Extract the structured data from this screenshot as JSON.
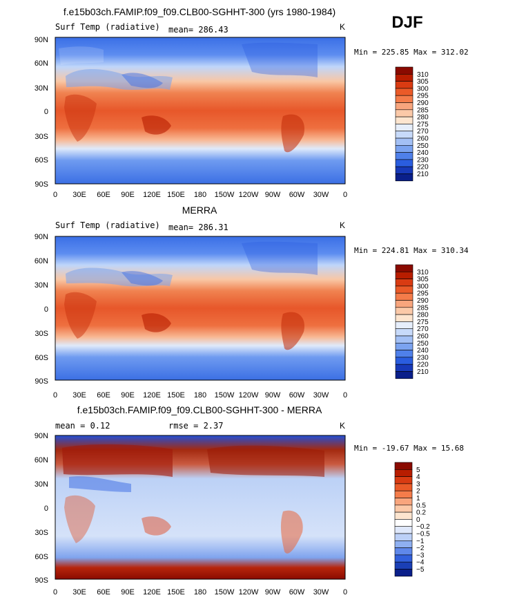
{
  "season": "DJF",
  "panels": [
    {
      "title": "f.e15b03ch.FAMIP.f09_f09.CLB00-SGHHT-300 (yrs 1980-1984)",
      "left_label": "Surf Temp (radiative)",
      "mean_text": "mean= 286.43",
      "unit": "K",
      "minmax": "Min = 225.85 Max = 312.02"
    },
    {
      "title": "MERRA",
      "left_label": "Surf Temp (radiative)",
      "mean_text": "mean= 286.31",
      "unit": "K",
      "minmax": "Min = 224.81 Max = 310.34"
    },
    {
      "title": "f.e15b03ch.FAMIP.f09_f09.CLB00-SGHHT-300 - MERRA",
      "left_label": "mean =    0.12",
      "mean_text": "rmse =    2.37",
      "unit": "K",
      "minmax": "Min = -19.67 Max =  15.68"
    }
  ],
  "chart_data": [
    {
      "type": "heatmap",
      "title": "f.e15b03ch.FAMIP.f09_f09.CLB00-SGHHT-300 (yrs 1980-1984)",
      "variable": "Surf Temp (radiative)",
      "units": "K",
      "mean": 286.43,
      "min": 225.85,
      "max": 312.02,
      "x_ticks": [
        "0",
        "30E",
        "60E",
        "90E",
        "120E",
        "150E",
        "180",
        "150W",
        "120W",
        "90W",
        "60W",
        "30W",
        "0"
      ],
      "y_ticks": [
        "90N",
        "60N",
        "30N",
        "0",
        "30S",
        "60S",
        "90S"
      ],
      "colorbar_levels": [
        "310",
        "305",
        "300",
        "295",
        "290",
        "285",
        "280",
        "275",
        "270",
        "260",
        "250",
        "240",
        "230",
        "220",
        "210"
      ],
      "colorbar_colors": [
        "#8a0a00",
        "#b81d00",
        "#d93b12",
        "#ea5a28",
        "#f47c4a",
        "#f8a57d",
        "#fbc9a8",
        "#fde5cf",
        "#e6eefb",
        "#c7dafa",
        "#a3c0f5",
        "#7ba3f0",
        "#4f80ea",
        "#2a5ddf",
        "#1739b8",
        "#0a1f8a"
      ]
    },
    {
      "type": "heatmap",
      "title": "MERRA",
      "variable": "Surf Temp (radiative)",
      "units": "K",
      "mean": 286.31,
      "min": 224.81,
      "max": 310.34,
      "x_ticks": [
        "0",
        "30E",
        "60E",
        "90E",
        "120E",
        "150E",
        "180",
        "150W",
        "120W",
        "90W",
        "60W",
        "30W",
        "0"
      ],
      "y_ticks": [
        "90N",
        "60N",
        "30N",
        "0",
        "30S",
        "60S",
        "90S"
      ],
      "colorbar_levels": [
        "310",
        "305",
        "300",
        "295",
        "290",
        "285",
        "280",
        "275",
        "270",
        "260",
        "250",
        "240",
        "230",
        "220",
        "210"
      ],
      "colorbar_colors": [
        "#8a0a00",
        "#b81d00",
        "#d93b12",
        "#ea5a28",
        "#f47c4a",
        "#f8a57d",
        "#fbc9a8",
        "#fde5cf",
        "#e6eefb",
        "#c7dafa",
        "#a3c0f5",
        "#7ba3f0",
        "#4f80ea",
        "#2a5ddf",
        "#1739b8",
        "#0a1f8a"
      ]
    },
    {
      "type": "heatmap",
      "title": "f.e15b03ch.FAMIP.f09_f09.CLB00-SGHHT-300 - MERRA",
      "units": "K",
      "mean": 0.12,
      "rmse": 2.37,
      "min": -19.67,
      "max": 15.68,
      "x_ticks": [
        "0",
        "30E",
        "60E",
        "90E",
        "120E",
        "150E",
        "180",
        "150W",
        "120W",
        "90W",
        "60W",
        "30W",
        "0"
      ],
      "y_ticks": [
        "90N",
        "60N",
        "30N",
        "0",
        "30S",
        "60S",
        "90S"
      ],
      "colorbar_levels": [
        "5",
        "4",
        "3",
        "2",
        "1",
        "0.5",
        "0.2",
        "0",
        "−0.2",
        "−0.5",
        "−1",
        "−2",
        "−3",
        "−4",
        "−5"
      ],
      "colorbar_colors": [
        "#8a0a00",
        "#b81d00",
        "#d93b12",
        "#ea5a28",
        "#f47c4a",
        "#f8a57d",
        "#fbc9a8",
        "#fde5cf",
        "#ffffff",
        "#dfe8fb",
        "#bcd0f7",
        "#8fb0f1",
        "#5f88ea",
        "#3260dc",
        "#1a3fb5",
        "#0a1f8a"
      ]
    }
  ]
}
